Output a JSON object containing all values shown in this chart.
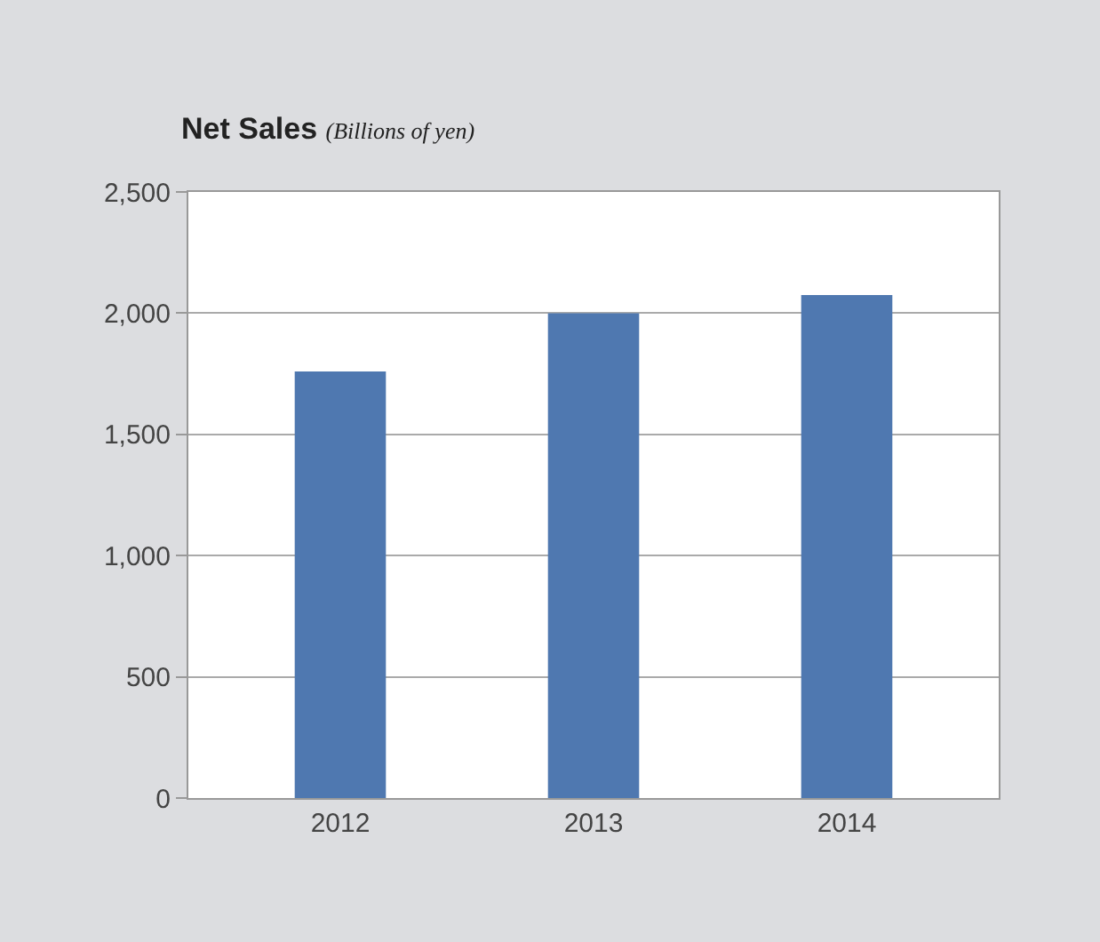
{
  "chart_data": {
    "type": "bar",
    "title": "Net Sales",
    "subtitle": "(Billions of yen)",
    "categories": [
      "2012",
      "2013",
      "2014"
    ],
    "values": [
      1760,
      2000,
      2075
    ],
    "color": "#4f78b0",
    "ylim": [
      0,
      2500
    ],
    "yticks": [
      {
        "value": 0,
        "label": "0"
      },
      {
        "value": 500,
        "label": "500"
      },
      {
        "value": 1000,
        "label": "1,000"
      },
      {
        "value": 1500,
        "label": "1,500"
      },
      {
        "value": 2000,
        "label": "2,000"
      },
      {
        "value": 2500,
        "label": "2,500"
      }
    ],
    "grid": "y",
    "legend": false
  }
}
